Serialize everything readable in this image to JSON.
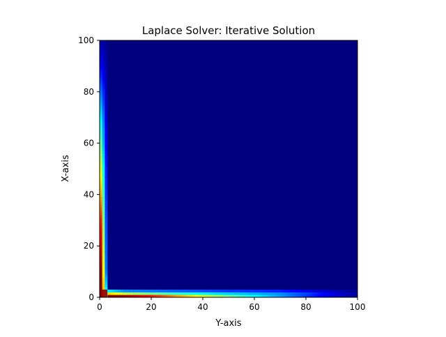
{
  "chart_data": {
    "type": "heatmap",
    "title": "Laplace Solver: Iterative Solution",
    "xlabel": "Y-axis",
    "ylabel": "X-axis",
    "xlim": [
      0,
      100
    ],
    "ylim": [
      0,
      100
    ],
    "x_ticks": [
      0,
      20,
      40,
      60,
      80,
      100
    ],
    "y_ticks": [
      0,
      20,
      40,
      60,
      80,
      100
    ],
    "x_tick_labels": [
      "0",
      "20",
      "40",
      "60",
      "80",
      "100"
    ],
    "y_tick_labels": [
      "0",
      "20",
      "40",
      "60",
      "80",
      "100"
    ],
    "grid": false,
    "colormap": "jet",
    "value_range": [
      0,
      1
    ],
    "background_value": 0,
    "bottom_edge_profile": {
      "x": [
        0,
        10,
        20,
        30,
        40,
        50,
        60,
        70,
        80,
        90,
        100
      ],
      "row0": [
        1.0,
        0.96,
        0.86,
        0.72,
        0.6,
        0.49,
        0.38,
        0.28,
        0.18,
        0.08,
        0.02
      ],
      "row1": [
        0.72,
        0.56,
        0.48,
        0.42,
        0.37,
        0.33,
        0.3,
        0.26,
        0.19,
        0.1,
        0.03
      ],
      "row2": [
        0.42,
        0.26,
        0.24,
        0.22,
        0.2,
        0.18,
        0.17,
        0.15,
        0.1,
        0.06,
        0.02
      ]
    },
    "left_edge_profile": {
      "y": [
        0,
        10,
        20,
        30,
        40,
        50,
        60,
        70,
        80,
        90,
        100
      ],
      "col0": [
        1.0,
        0.98,
        0.9,
        0.84,
        0.7,
        0.6,
        0.48,
        0.36,
        0.24,
        0.12,
        0.04
      ],
      "col1": [
        0.72,
        0.62,
        0.56,
        0.5,
        0.44,
        0.38,
        0.3,
        0.24,
        0.16,
        0.08,
        0.03
      ],
      "col2": [
        0.42,
        0.24,
        0.22,
        0.2,
        0.17,
        0.15,
        0.12,
        0.09,
        0.06,
        0.04,
        0.02
      ]
    },
    "colors": {
      "background": "#00007f",
      "axis": "#000000",
      "figure": "#ffffff"
    }
  }
}
